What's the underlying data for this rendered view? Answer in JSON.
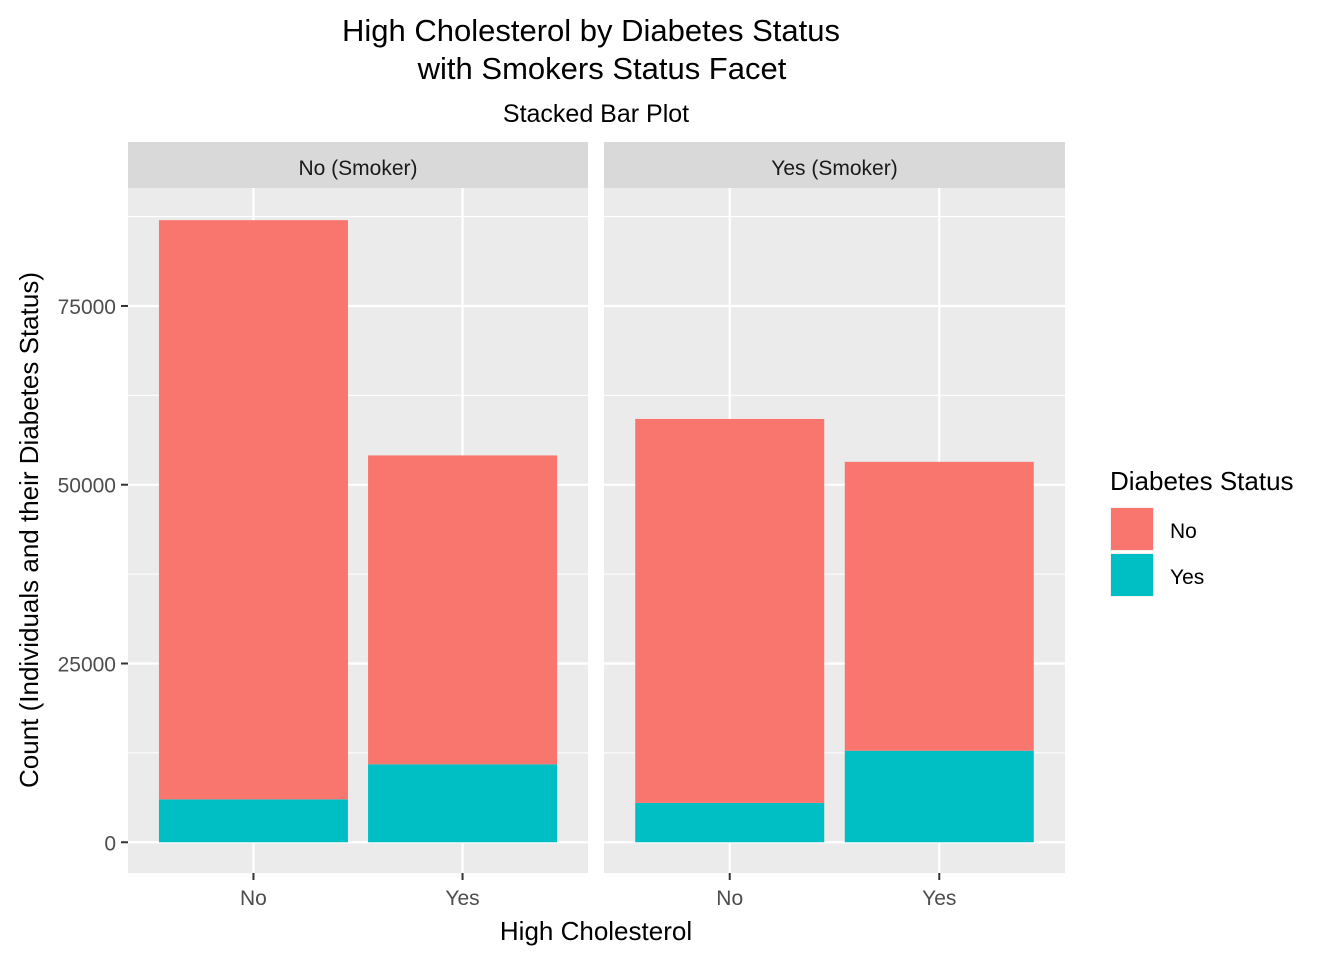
{
  "chart_data": {
    "type": "bar",
    "stacked": true,
    "title_lines": [
      "High Cholesterol by Diabetes Status",
      "with Smokers Status Facet"
    ],
    "subtitle": "Stacked Bar Plot",
    "xlabel": "High Cholesterol",
    "ylabel": "Count (Individuals and their Diabetes Status)",
    "ylim": [
      -4300,
      91500
    ],
    "y_ticks": [
      0,
      25000,
      50000,
      75000
    ],
    "y_tick_labels": [
      "0",
      "25000",
      "50000",
      "75000"
    ],
    "grid": true,
    "categories": [
      "No",
      "Yes"
    ],
    "legend": {
      "title": "Diabetes Status",
      "position": "right",
      "entries": [
        {
          "label": "No",
          "color": "#F8766D"
        },
        {
          "label": "Yes",
          "color": "#00BFC4"
        }
      ]
    },
    "facets": [
      {
        "label": "No (Smoker)",
        "series": [
          {
            "name": "No",
            "color": "#F8766D",
            "values": [
              81000,
              43200
            ]
          },
          {
            "name": "Yes",
            "color": "#00BFC4",
            "values": [
              6000,
              10900
            ]
          }
        ]
      },
      {
        "label": "Yes (Smoker)",
        "series": [
          {
            "name": "No",
            "color": "#F8766D",
            "values": [
              53700,
              40400
            ]
          },
          {
            "name": "Yes",
            "color": "#00BFC4",
            "values": [
              5500,
              12800
            ]
          }
        ]
      }
    ]
  }
}
